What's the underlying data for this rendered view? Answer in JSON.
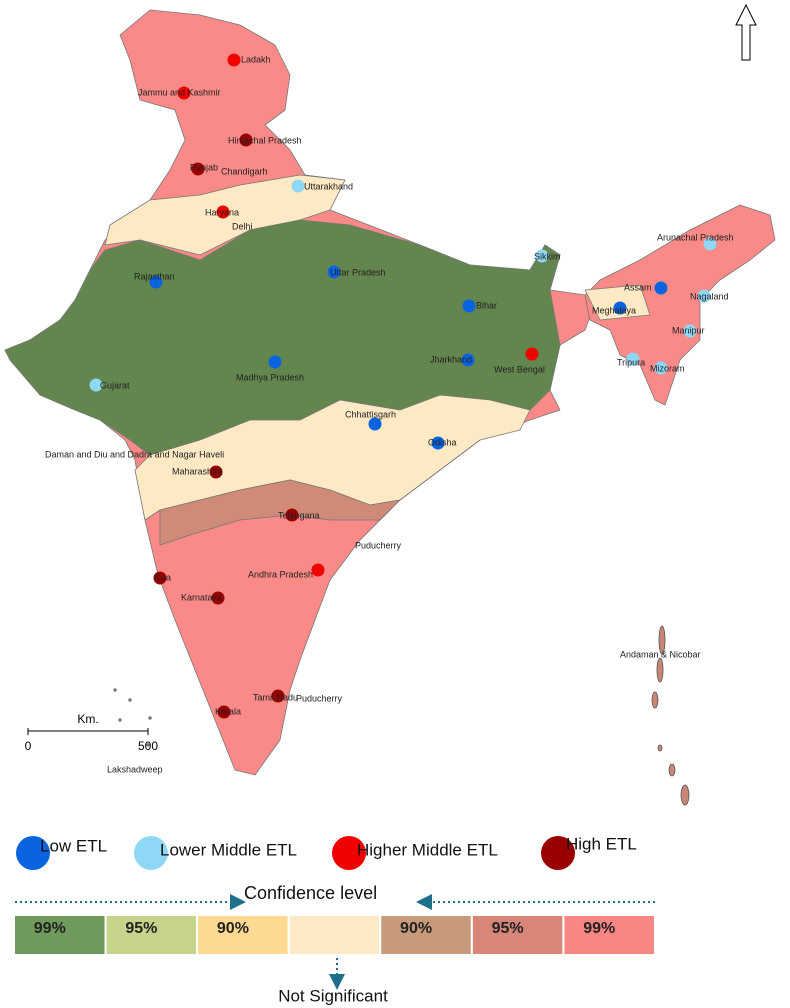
{
  "map": {
    "states": [
      "Ladakh",
      "Jammu and Kashmir",
      "Himachal Pradesh",
      "Punjab",
      "Chandigarh",
      "Uttarakhand",
      "Haryana",
      "Delhi",
      "Rajasthan",
      "Uttar Pradesh",
      "Bihar",
      "Sikkim",
      "Arunachal Pradesh",
      "Assam",
      "Meghalaya",
      "Nagaland",
      "Manipur",
      "Tripura",
      "Mizoram",
      "Jharkhand",
      "West Bengal",
      "Madhya Pradesh",
      "Gujarat",
      "Chhattisgarh",
      "Odisha",
      "Daman and Diu and Dadra and Nagar Haveli",
      "Maharashtra",
      "Telangana",
      "Puducherry",
      "Andhra Pradesh",
      "Goa",
      "Karnataka",
      "Tamil Nadu",
      "Puducherry",
      "Kerala",
      "Andaman & Nicobar",
      "Lakshadweep"
    ],
    "legend": [
      {
        "name": "Low ETL",
        "color": "#0a64e0"
      },
      {
        "name": "Lower Middle ETL",
        "color": "#8fd8f5"
      },
      {
        "name": "Higher Middle ETL",
        "color": "#f00000"
      },
      {
        "name": "High ETL",
        "color": "#9b0000"
      }
    ],
    "scale": {
      "unit": "Km.",
      "ticks": [
        0,
        500
      ]
    },
    "confidence": {
      "title": "Confidence level",
      "cells": [
        {
          "label": "99%",
          "color": "#6e9a5c"
        },
        {
          "label": "95%",
          "color": "#c6d38a"
        },
        {
          "label": "90%",
          "color": "#fdd991"
        },
        {
          "color": "#fde9c4"
        },
        {
          "label": "90%",
          "color": "#c79a7c"
        },
        {
          "label": "95%",
          "color": "#d78678"
        },
        {
          "label": "99%",
          "color": "#f98683"
        }
      ],
      "not_significant": "Not Significant"
    }
  }
}
